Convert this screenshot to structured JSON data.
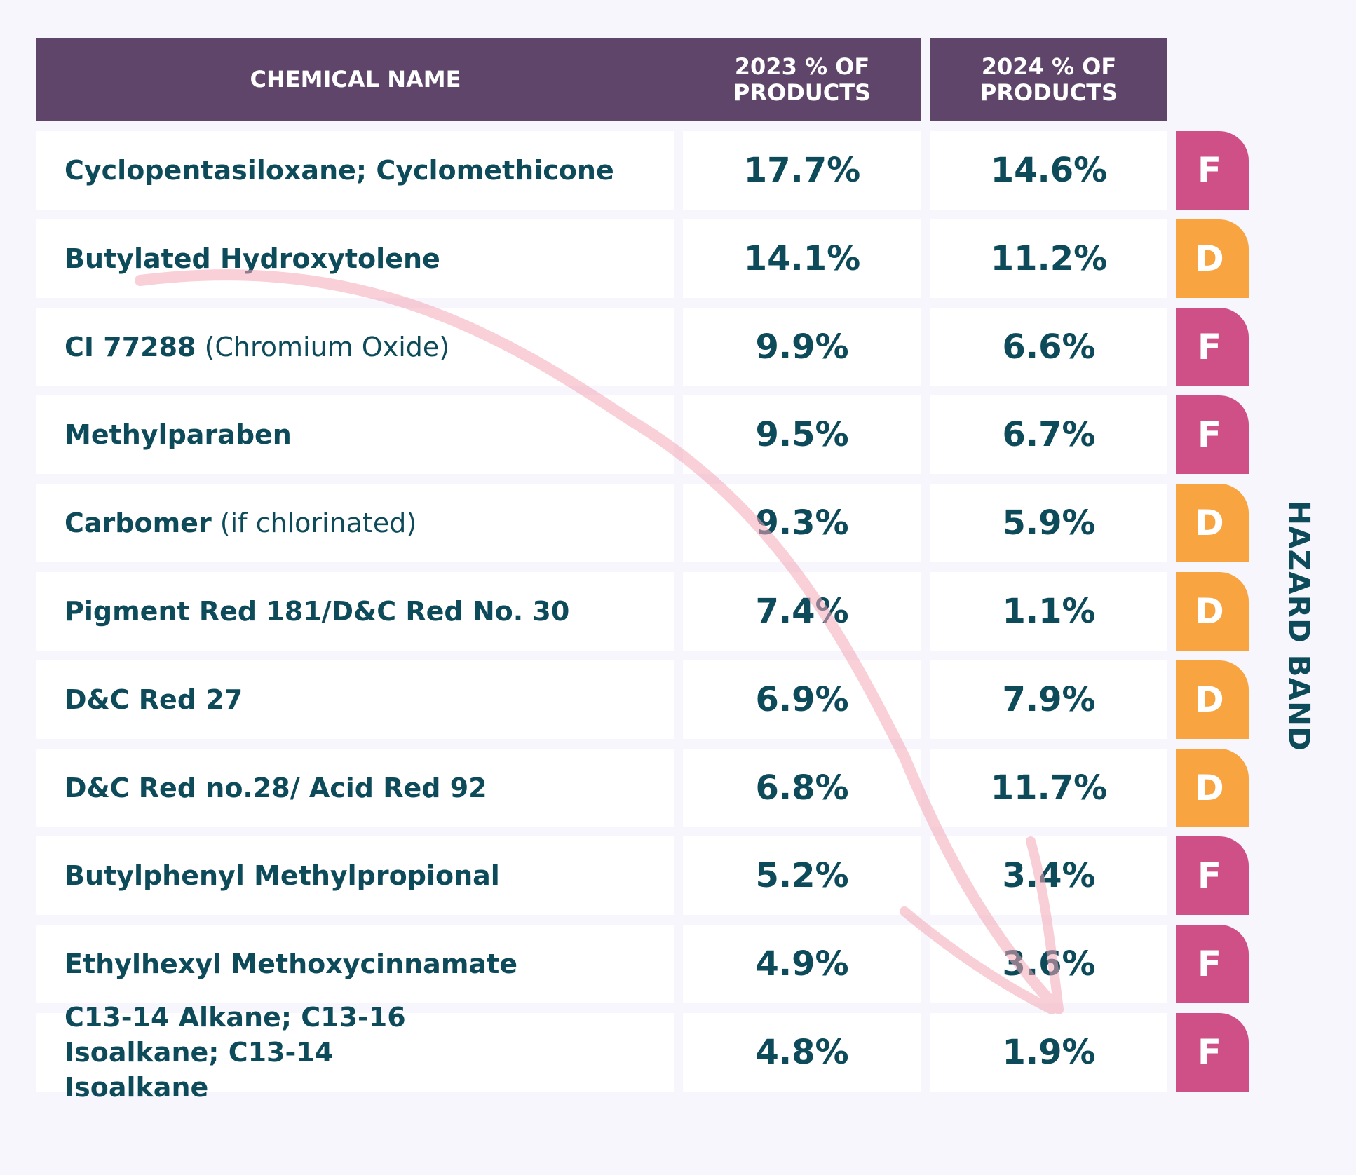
{
  "header": {
    "chemical_name": "CHEMICAL NAME",
    "col_2023": "2023 % OF PRODUCTS",
    "col_2024": "2024 % OF PRODUCTS"
  },
  "hazard_band_label": "HAZARD BAND",
  "colors": {
    "header_bg": "#5e4569",
    "text": "#0d4a5a",
    "band_F": "#cf5087",
    "band_D": "#f7a441",
    "background": "#f7f6fc",
    "decorative_arrow": "#f4a8b8"
  },
  "decorative_arrow_icon": "hand-drawn-down-arrow",
  "rows": [
    {
      "name_bold": "Cyclopentasiloxane; Cyclomethicone",
      "name_light": "",
      "y2023": "17.7%",
      "y2024": "14.6%",
      "band": "F"
    },
    {
      "name_bold": "Butylated Hydroxytolene",
      "name_light": "",
      "y2023": "14.1%",
      "y2024": "11.2%",
      "band": "D"
    },
    {
      "name_bold": "CI 77288",
      "name_light": "(Chromium Oxide)",
      "y2023": "9.9%",
      "y2024": "6.6%",
      "band": "F"
    },
    {
      "name_bold": "Methylparaben",
      "name_light": "",
      "y2023": "9.5%",
      "y2024": "6.7%",
      "band": "F"
    },
    {
      "name_bold": "Carbomer",
      "name_light": "(if chlorinated)",
      "y2023": "9.3%",
      "y2024": "5.9%",
      "band": "D"
    },
    {
      "name_bold": "Pigment Red 181/D&C Red No. 30",
      "name_light": "",
      "y2023": "7.4%",
      "y2024": "1.1%",
      "band": "D"
    },
    {
      "name_bold": "D&C Red 27",
      "name_light": "",
      "y2023": "6.9%",
      "y2024": "7.9%",
      "band": "D"
    },
    {
      "name_bold": "D&C Red no.28/ Acid Red 92",
      "name_light": "",
      "y2023": "6.8%",
      "y2024": "11.7%",
      "band": "D"
    },
    {
      "name_bold": "Butylphenyl Methylpropional",
      "name_light": "",
      "y2023": "5.2%",
      "y2024": "3.4%",
      "band": "F"
    },
    {
      "name_bold": "Ethylhexyl Methoxycinnamate",
      "name_light": "",
      "y2023": "4.9%",
      "y2024": "3.6%",
      "band": "F"
    },
    {
      "name_bold": "C13-14 Alkane; C13-16 Isoalkane; C13-14 Isoalkane",
      "name_light": "",
      "y2023": "4.8%",
      "y2024": "1.9%",
      "band": "F"
    }
  ]
}
